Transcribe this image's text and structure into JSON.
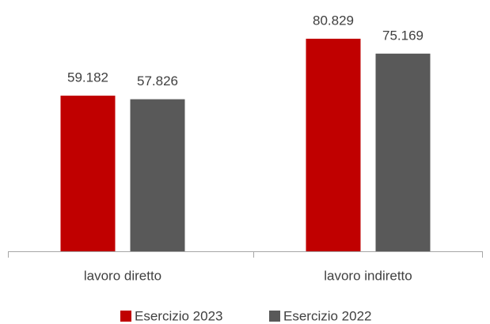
{
  "chart_data": {
    "type": "bar",
    "categories": [
      "lavoro diretto",
      "lavoro indiretto"
    ],
    "series": [
      {
        "name": "Esercizio 2023",
        "color": "#c00000",
        "values": [
          59182,
          80829
        ],
        "value_labels": [
          "59.182",
          "80.829"
        ]
      },
      {
        "name": "Esercizio 2022",
        "color": "#595959",
        "values": [
          57826,
          75169
        ],
        "value_labels": [
          "57.826",
          "75.169"
        ]
      }
    ],
    "ylim": [
      0,
      90000
    ]
  }
}
